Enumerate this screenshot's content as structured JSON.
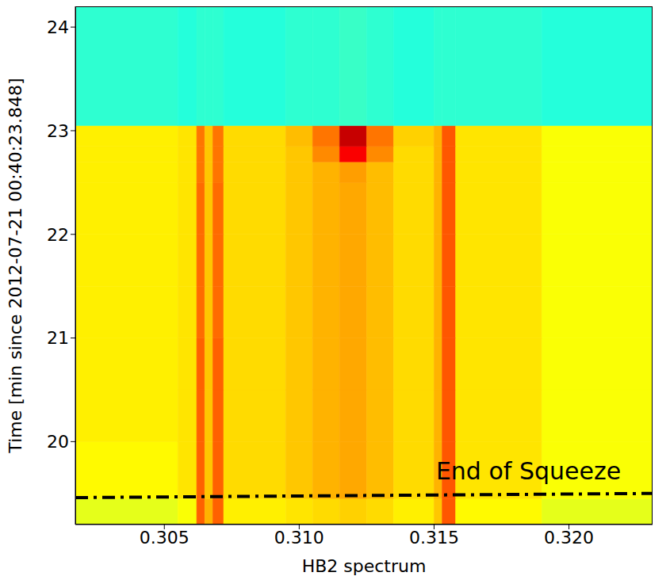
{
  "chart_data": {
    "type": "heatmap",
    "x_label": "HB2 spectrum",
    "y_label": "Time [min since 2012-07-21 00:40:23.848]",
    "xlim": [
      0.3017,
      0.3231
    ],
    "xticks": [
      0.305,
      {
        "value": 0.31,
        "label": "0.310"
      },
      0.315,
      {
        "value": 0.32,
        "label": "0.320"
      }
    ],
    "ylim": [
      19.2,
      24.2
    ],
    "yticks": [
      20,
      21,
      22,
      23,
      24
    ],
    "x_edges": [
      0.3017,
      0.3055,
      0.3062,
      0.3065,
      0.3068,
      0.3072,
      0.3095,
      0.3105,
      0.3115,
      0.3125,
      0.3135,
      0.315,
      0.3153,
      0.3158,
      0.319,
      0.3231
    ],
    "y_edges": [
      19.2,
      19.45,
      20,
      20.5,
      21,
      21.5,
      22,
      22.5,
      22.7,
      22.85,
      23.05,
      24.2
    ],
    "cells": [
      [
        0.6,
        0.62,
        0.78,
        0.7,
        0.78,
        0.64,
        0.65,
        0.66,
        0.67,
        0.66,
        0.64,
        0.68,
        0.79,
        0.63,
        0.6
      ],
      [
        0.63,
        0.65,
        0.78,
        0.68,
        0.78,
        0.66,
        0.68,
        0.7,
        0.71,
        0.69,
        0.66,
        0.7,
        0.79,
        0.65,
        0.62
      ],
      [
        0.64,
        0.65,
        0.78,
        0.68,
        0.78,
        0.66,
        0.68,
        0.7,
        0.71,
        0.69,
        0.66,
        0.7,
        0.79,
        0.65,
        0.62
      ],
      [
        0.64,
        0.65,
        0.78,
        0.68,
        0.78,
        0.66,
        0.68,
        0.7,
        0.71,
        0.69,
        0.66,
        0.7,
        0.79,
        0.65,
        0.62
      ],
      [
        0.64,
        0.65,
        0.77,
        0.68,
        0.77,
        0.66,
        0.68,
        0.7,
        0.71,
        0.69,
        0.66,
        0.7,
        0.79,
        0.65,
        0.62
      ],
      [
        0.64,
        0.65,
        0.77,
        0.68,
        0.77,
        0.66,
        0.68,
        0.7,
        0.71,
        0.69,
        0.66,
        0.7,
        0.79,
        0.65,
        0.62
      ],
      [
        0.64,
        0.65,
        0.77,
        0.68,
        0.77,
        0.66,
        0.68,
        0.7,
        0.71,
        0.69,
        0.66,
        0.7,
        0.79,
        0.65,
        0.62
      ],
      [
        0.64,
        0.65,
        0.76,
        0.68,
        0.76,
        0.66,
        0.68,
        0.7,
        0.72,
        0.69,
        0.66,
        0.7,
        0.79,
        0.65,
        0.62
      ],
      [
        0.64,
        0.65,
        0.76,
        0.68,
        0.76,
        0.66,
        0.68,
        0.74,
        0.88,
        0.74,
        0.66,
        0.7,
        0.79,
        0.65,
        0.62
      ],
      [
        0.64,
        0.65,
        0.76,
        0.68,
        0.76,
        0.66,
        0.69,
        0.76,
        0.93,
        0.76,
        0.67,
        0.7,
        0.79,
        0.65,
        0.62
      ],
      [
        0.42,
        0.41,
        0.42,
        0.42,
        0.42,
        0.41,
        0.42,
        0.42,
        0.43,
        0.42,
        0.41,
        0.42,
        0.42,
        0.42,
        0.41
      ]
    ],
    "zlim": [
      0,
      1
    ],
    "series": [
      {
        "x": [
          0.3017,
          0.3231
        ],
        "values": [
          19.46,
          19.5
        ],
        "color": "#000000",
        "line_style": "dashdot"
      }
    ],
    "annotations": [
      {
        "text": "End of Squeeze",
        "x": 0.3185,
        "y": 19.72
      }
    ]
  }
}
